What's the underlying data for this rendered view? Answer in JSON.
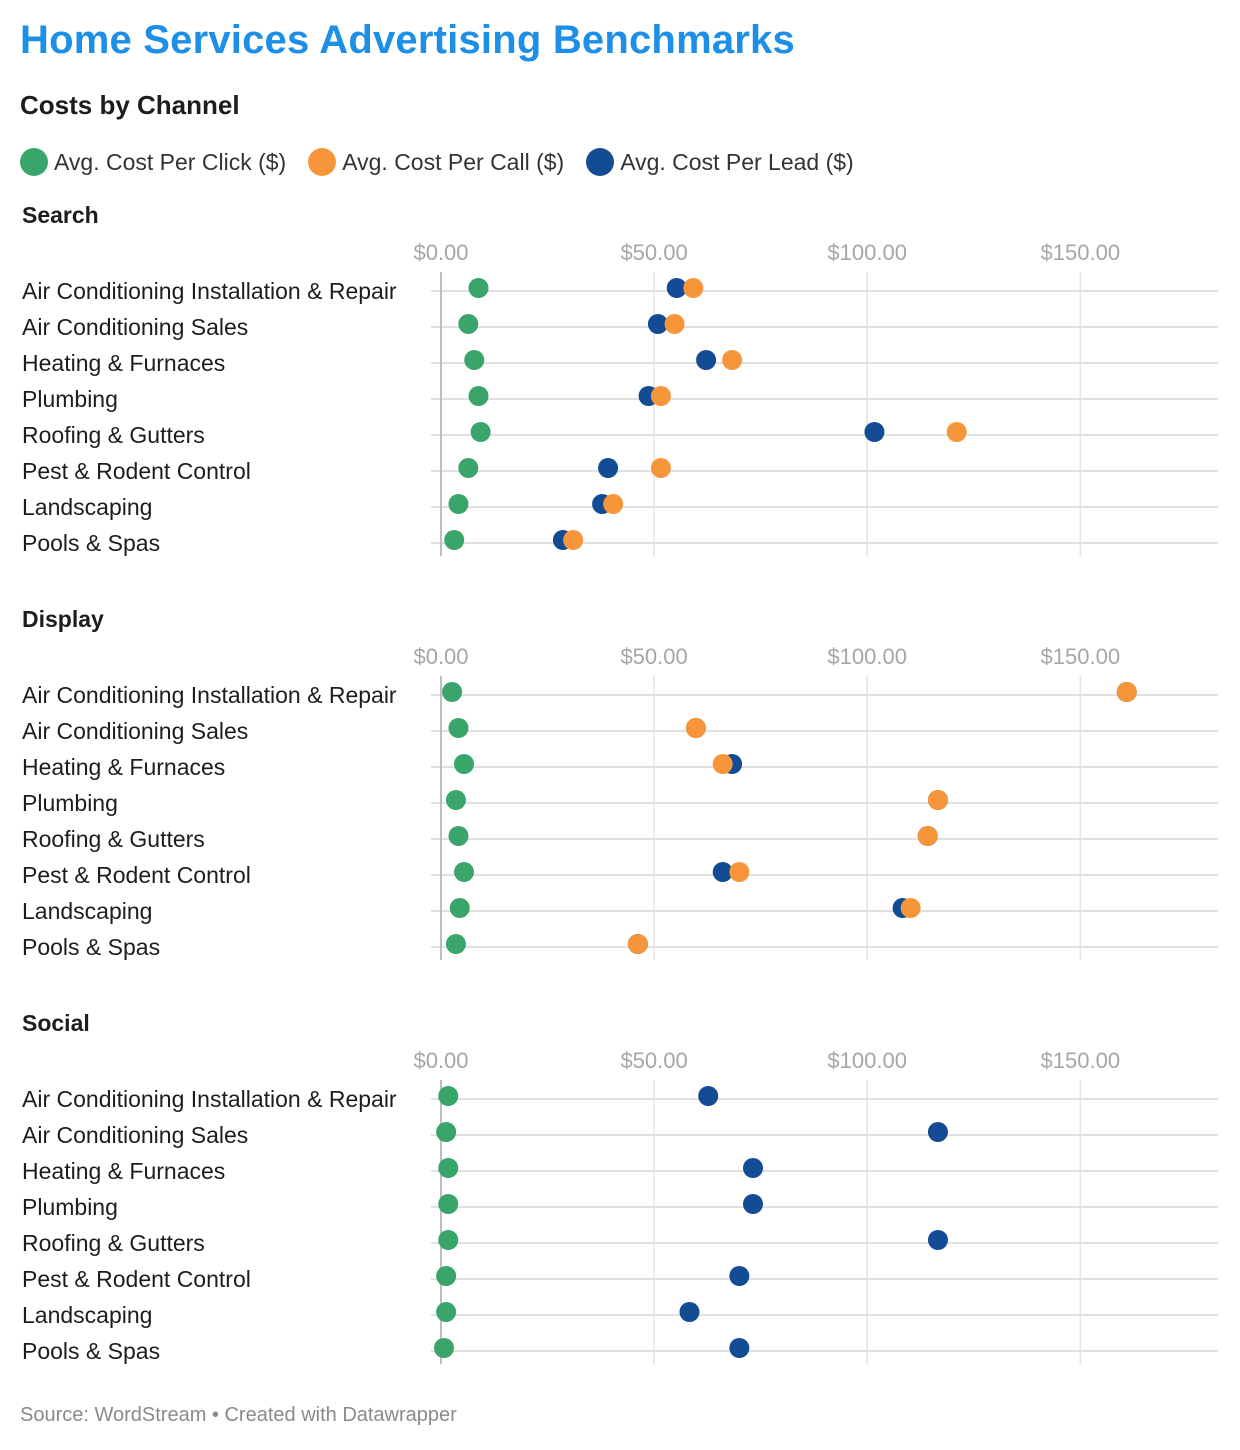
{
  "header": {
    "title": "Home Services Advertising Benchmarks",
    "subtitle": "Costs by Channel"
  },
  "legend": [
    {
      "label": "Avg. Cost Per Click ($)",
      "color": "#3aa56a"
    },
    {
      "label": "Avg. Cost Per Call ($)",
      "color": "#f7953a"
    },
    {
      "label": "Avg. Cost Per Lead ($)",
      "color": "#134b94"
    }
  ],
  "footer": {
    "source": "Source: WordStream • Created with Datawrapper"
  },
  "chart_data": [
    {
      "type": "scatter",
      "title": "Search",
      "xlim": [
        0,
        182
      ],
      "xticks": [
        0,
        50,
        100,
        150
      ],
      "xtick_labels": [
        "$0.00",
        "$50.00",
        "$100.00",
        "$150.00"
      ],
      "categories": [
        "Air Conditioning Installation & Repair",
        "Air Conditioning Sales",
        "Heating & Furnaces",
        "Plumbing",
        "Roofing & Gutters",
        "Pest & Rodent Control",
        "Landscaping",
        "Pools & Spas"
      ],
      "series": [
        {
          "name": "Avg. Cost Per Click ($)",
          "color": "#3aa56a",
          "values": [
            8.8,
            6.4,
            7.8,
            8.8,
            9.3,
            6.4,
            4.1,
            3.1
          ]
        },
        {
          "name": "Avg. Cost Per Lead ($)",
          "color": "#134b94",
          "values": [
            55.3,
            50.9,
            62.2,
            48.7,
            101.7,
            39.2,
            37.8,
            28.6
          ]
        },
        {
          "name": "Avg. Cost Per Call ($)",
          "color": "#f7953a",
          "values": [
            59.2,
            54.8,
            68.3,
            51.6,
            121.0,
            51.6,
            40.4,
            31.0
          ]
        }
      ],
      "grid": true
    },
    {
      "type": "scatter",
      "title": "Display",
      "xlim": [
        0,
        182
      ],
      "xticks": [
        0,
        50,
        100,
        150
      ],
      "xtick_labels": [
        "$0.00",
        "$50.00",
        "$100.00",
        "$150.00"
      ],
      "categories": [
        "Air Conditioning Installation & Repair",
        "Air Conditioning Sales",
        "Heating & Furnaces",
        "Plumbing",
        "Roofing & Gutters",
        "Pest & Rodent Control",
        "Landscaping",
        "Pools & Spas"
      ],
      "series": [
        {
          "name": "Avg. Cost Per Click ($)",
          "color": "#3aa56a",
          "values": [
            2.6,
            4.1,
            5.4,
            3.5,
            4.1,
            5.4,
            4.4,
            3.5
          ]
        },
        {
          "name": "Avg. Cost Per Lead ($)",
          "color": "#134b94",
          "values": [
            160.9,
            59.8,
            68.3,
            116.6,
            114.2,
            66.1,
            108.3,
            46.2
          ]
        },
        {
          "name": "Avg. Cost Per Call ($)",
          "color": "#f7953a",
          "values": [
            160.9,
            59.8,
            66.1,
            116.6,
            114.2,
            70.0,
            110.2,
            46.2
          ]
        }
      ],
      "grid": true
    },
    {
      "type": "scatter",
      "title": "Social",
      "xlim": [
        0,
        182
      ],
      "xticks": [
        0,
        50,
        100,
        150
      ],
      "xtick_labels": [
        "$0.00",
        "$50.00",
        "$100.00",
        "$150.00"
      ],
      "categories": [
        "Air Conditioning Installation & Repair",
        "Air Conditioning Sales",
        "Heating & Furnaces",
        "Plumbing",
        "Roofing & Gutters",
        "Pest & Rodent Control",
        "Landscaping",
        "Pools & Spas"
      ],
      "series": [
        {
          "name": "Avg. Cost Per Click ($)",
          "color": "#3aa56a",
          "values": [
            1.7,
            1.2,
            1.7,
            1.7,
            1.7,
            1.2,
            1.2,
            0.7
          ]
        },
        {
          "name": "Avg. Cost Per Lead ($)",
          "color": "#134b94",
          "values": [
            62.7,
            116.6,
            73.2,
            73.2,
            116.6,
            70.0,
            58.3,
            70.0
          ]
        }
      ],
      "grid": true
    }
  ]
}
